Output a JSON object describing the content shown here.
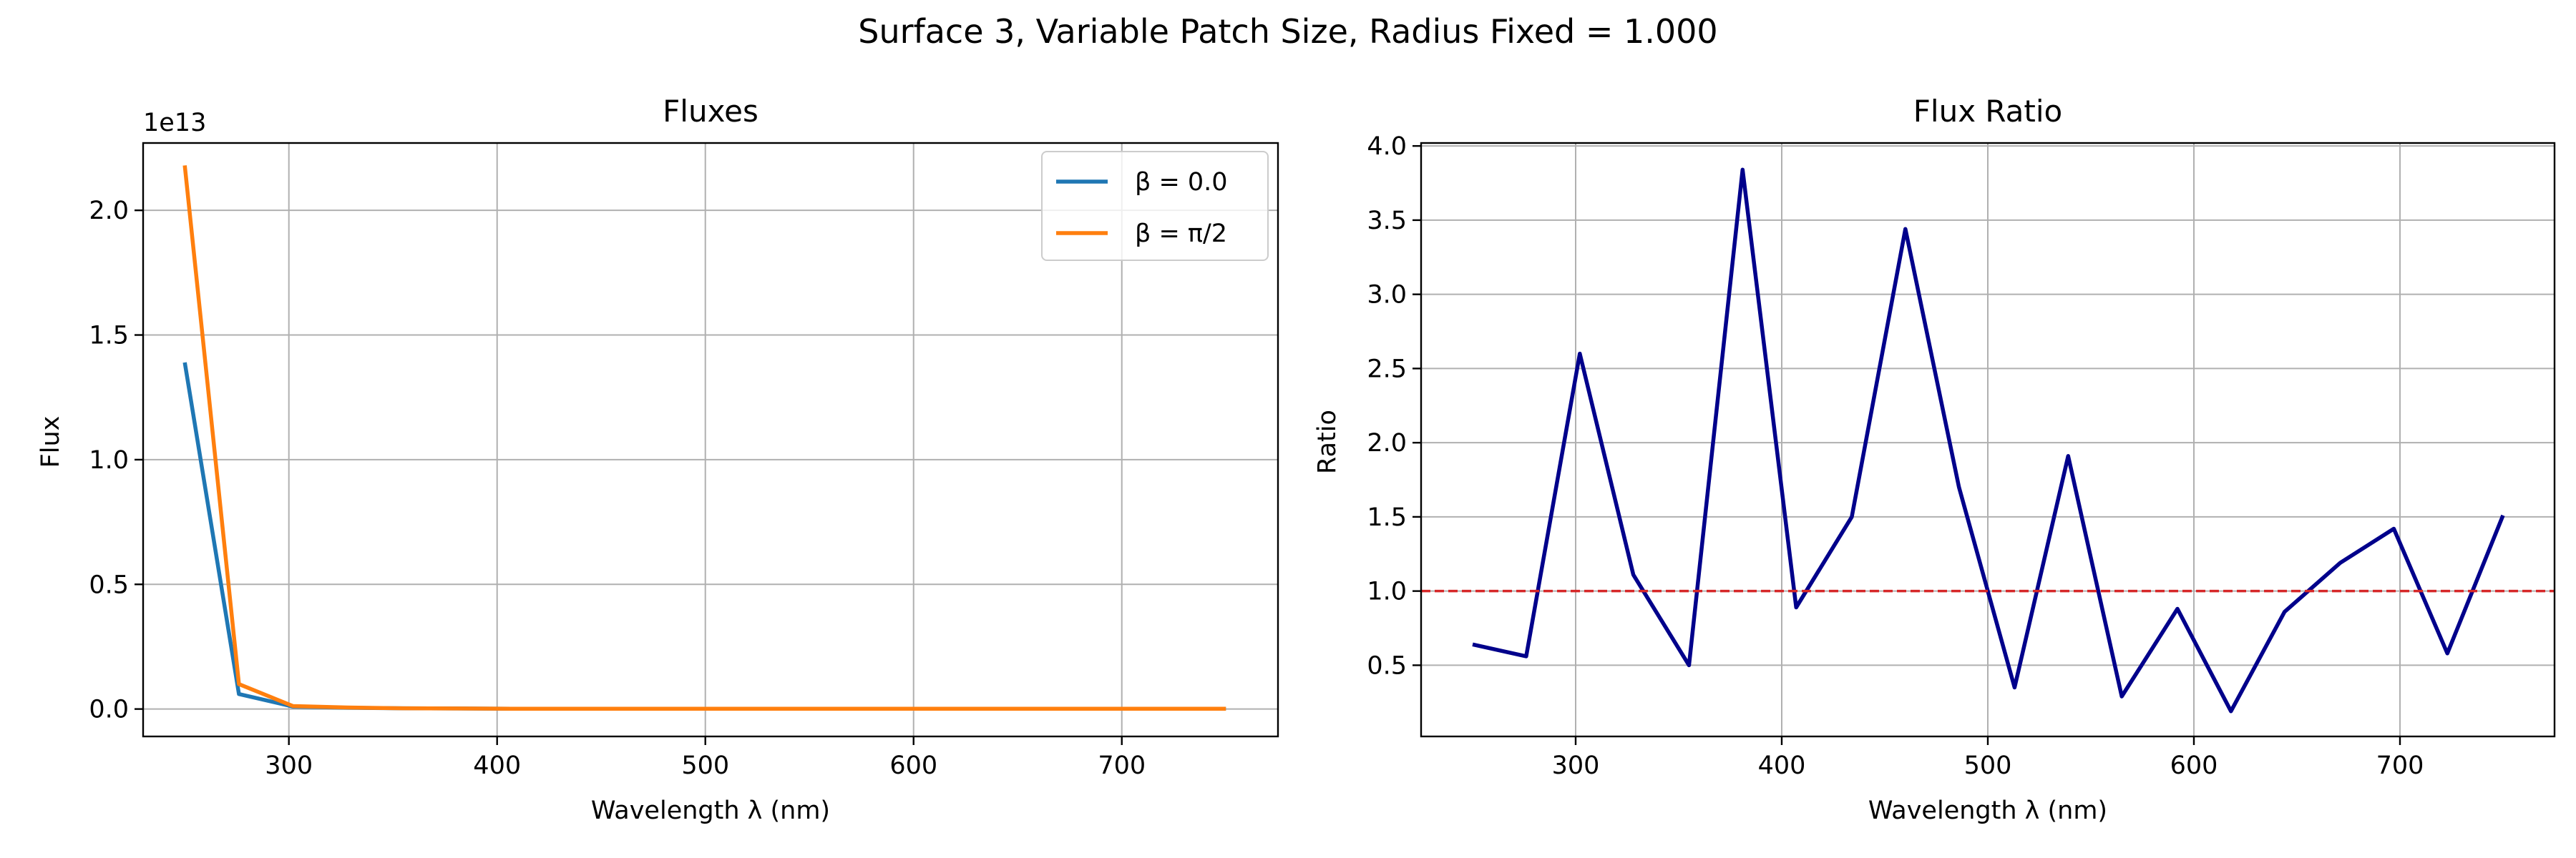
{
  "suptitle": "Surface 3, Variable Patch Size, Radius Fixed = 1.000",
  "chart_data": [
    {
      "type": "line",
      "title": "Fluxes",
      "xlabel": "Wavelength λ (nm)",
      "ylabel": "Flux",
      "offset_label": "1e13",
      "xlim": [
        230,
        775
      ],
      "ylim": [
        -0.11,
        2.27
      ],
      "xticks": [
        300,
        400,
        500,
        600,
        700
      ],
      "yticks": [
        0.0,
        0.5,
        1.0,
        1.5,
        2.0
      ],
      "ytick_labels": [
        "0.0",
        "0.5",
        "1.0",
        "1.5",
        "2.0"
      ],
      "grid": true,
      "legend_position": "top-right",
      "x": [
        250,
        276,
        302,
        328,
        355,
        381,
        407,
        434,
        460,
        486,
        513,
        539,
        565,
        592,
        618,
        644,
        671,
        697,
        723,
        750
      ],
      "series": [
        {
          "name": "β = 0.0",
          "color": "#1f77b4",
          "values": [
            1.39,
            0.06,
            0.01,
            0.005,
            0.003,
            0.002,
            0.001,
            0.001,
            0.001,
            0.001,
            0.001,
            0.001,
            0.001,
            0.001,
            0.001,
            0.001,
            0.001,
            0.001,
            0.001,
            0.001
          ]
        },
        {
          "name": "β = π/2",
          "color": "#ff7f0e",
          "values": [
            2.18,
            0.1,
            0.012,
            0.006,
            0.003,
            0.002,
            0.001,
            0.001,
            0.001,
            0.001,
            0.001,
            0.001,
            0.001,
            0.001,
            0.001,
            0.001,
            0.001,
            0.001,
            0.001,
            0.001
          ]
        }
      ]
    },
    {
      "type": "line",
      "title": "Flux Ratio",
      "xlabel": "Wavelength λ (nm)",
      "ylabel": "Ratio",
      "xlim": [
        225,
        775
      ],
      "ylim": [
        0.02,
        4.02
      ],
      "xticks": [
        300,
        400,
        500,
        600,
        700
      ],
      "yticks": [
        0.5,
        1.0,
        1.5,
        2.0,
        2.5,
        3.0,
        3.5,
        4.0
      ],
      "ytick_labels": [
        "0.5",
        "1.0",
        "1.5",
        "2.0",
        "2.5",
        "3.0",
        "3.5",
        "4.0"
      ],
      "grid": true,
      "reference_line": {
        "y": 1.0,
        "color": "#d62728",
        "style": "dashed"
      },
      "x": [
        250,
        276,
        302,
        328,
        355,
        381,
        407,
        434,
        460,
        486,
        513,
        539,
        565,
        592,
        618,
        644,
        671,
        697,
        723,
        750
      ],
      "series": [
        {
          "color": "#00008b",
          "values": [
            0.64,
            0.56,
            2.6,
            1.11,
            0.5,
            3.84,
            0.89,
            1.5,
            3.44,
            1.7,
            0.35,
            1.91,
            0.29,
            0.88,
            0.19,
            0.86,
            1.19,
            1.42,
            0.58,
            1.51
          ]
        }
      ]
    }
  ]
}
